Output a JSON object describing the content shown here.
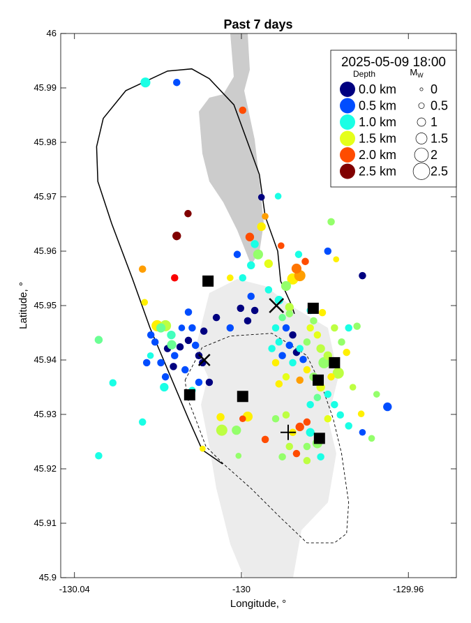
{
  "chart_data": {
    "type": "scatter",
    "title": "Past 7 days",
    "xlabel": "Longitude, °",
    "ylabel": "Latitude, °",
    "xlim": [
      -130.0433,
      -129.9485
    ],
    "ylim": [
      45.9,
      46.0
    ],
    "xticks": [
      -130.04,
      -130,
      -129.96
    ],
    "xtick_labels": [
      "-130.04",
      "-130",
      "-129.96"
    ],
    "yticks": [
      45.9,
      45.91,
      45.92,
      45.93,
      45.94,
      45.95,
      45.96,
      45.97,
      45.98,
      45.99,
      46.0
    ],
    "ytick_labels": [
      "45.9",
      "45.91",
      "45.92",
      "45.93",
      "45.94",
      "45.95",
      "45.96",
      "45.97",
      "45.98",
      "45.99",
      "46"
    ],
    "grid": false,
    "colormap": "jet",
    "legend": {
      "placement": "top-right",
      "timestamp": "2025-05-09 18:00",
      "depth_title": "Depth",
      "mag_title": "M",
      "mag_subscript": "W",
      "depth_entries": [
        {
          "label": "0.0 km",
          "depth": 0.0
        },
        {
          "label": "0.5 km",
          "depth": 0.5
        },
        {
          "label": "1.0 km",
          "depth": 1.0
        },
        {
          "label": "1.5 km",
          "depth": 1.5
        },
        {
          "label": "2.0 km",
          "depth": 2.0
        },
        {
          "label": "2.5 km",
          "depth": 2.5
        }
      ],
      "mag_entries": [
        {
          "label": "0",
          "mag": 0
        },
        {
          "label": "0.5",
          "mag": 0.5
        },
        {
          "label": "1",
          "mag": 1
        },
        {
          "label": "1.5",
          "mag": 1.5
        },
        {
          "label": "2",
          "mag": 2
        },
        {
          "label": "2.5",
          "mag": 2.5
        }
      ]
    },
    "point_fields": [
      "lon",
      "lat",
      "depth_km",
      "mag_w"
    ],
    "points": [
      [
        -130.023,
        45.991,
        1.0,
        1.0
      ],
      [
        -130.0155,
        45.991,
        0.5,
        0.6
      ],
      [
        -129.9997,
        45.9859,
        2.0,
        0.6
      ],
      [
        -130.0128,
        45.9669,
        2.5,
        0.6
      ],
      [
        -130.0155,
        45.9628,
        2.5,
        0.8
      ],
      [
        -130.016,
        45.9551,
        2.2,
        0.6
      ],
      [
        -130.0237,
        45.9567,
        1.8,
        0.6
      ],
      [
        -130.0232,
        45.9506,
        1.6,
        0.5
      ],
      [
        -130.0342,
        45.9437,
        1.2,
        0.7
      ],
      [
        -130.0202,
        45.9463,
        1.6,
        1.2
      ],
      [
        -130.0182,
        45.9463,
        1.4,
        1.2
      ],
      [
        -130.0308,
        45.9358,
        1.0,
        0.6
      ],
      [
        -130.0237,
        45.9286,
        1.0,
        0.6
      ],
      [
        -130.0342,
        45.9224,
        1.0,
        0.6
      ],
      [
        -129.965,
        45.9314,
        0.5,
        0.8
      ],
      [
        -130.0047,
        45.9271,
        1.4,
        1.2
      ],
      [
        -130.0012,
        45.9271,
        1.3,
        0.9
      ],
      [
        -130.005,
        45.9295,
        1.6,
        0.7
      ],
      [
        -129.9985,
        45.9296,
        1.6,
        1.0
      ],
      [
        -129.9997,
        45.9292,
        2.0,
        0.5
      ],
      [
        -129.9943,
        45.9254,
        2.0,
        0.6
      ],
      [
        -130.0007,
        45.9224,
        1.3,
        0.4
      ],
      [
        -130.0093,
        45.9237,
        1.6,
        0.4
      ],
      [
        -129.9952,
        45.9699,
        0.0,
        0.5
      ],
      [
        -129.9912,
        45.9701,
        1.0,
        0.5
      ],
      [
        -129.9952,
        45.9645,
        1.6,
        0.8
      ],
      [
        -129.9943,
        45.9664,
        1.8,
        0.5
      ],
      [
        -129.998,
        45.9626,
        2.0,
        0.8
      ],
      [
        -129.9968,
        45.9613,
        1.0,
        0.7
      ],
      [
        -129.996,
        45.9594,
        1.3,
        1.0
      ],
      [
        -129.9935,
        45.9577,
        1.5,
        0.8
      ],
      [
        -129.9905,
        45.961,
        2.0,
        0.5
      ],
      [
        -129.9977,
        45.9574,
        1.0,
        0.7
      ],
      [
        -129.9997,
        45.9551,
        1.0,
        0.6
      ],
      [
        -130.0027,
        45.9551,
        1.6,
        0.5
      ],
      [
        -129.9863,
        45.9594,
        1.0,
        0.6
      ],
      [
        -129.9877,
        45.9549,
        1.6,
        1.2
      ],
      [
        -129.986,
        45.9555,
        1.8,
        1.2
      ],
      [
        -129.9868,
        45.9568,
        1.9,
        1.0
      ],
      [
        -129.9847,
        45.9581,
        2.0,
        0.6
      ],
      [
        -129.9893,
        45.9536,
        1.3,
        1.0
      ],
      [
        -129.991,
        45.951,
        1.0,
        0.8
      ],
      [
        -129.9885,
        45.9497,
        1.4,
        0.8
      ],
      [
        -129.9785,
        45.9654,
        1.3,
        0.6
      ],
      [
        -129.9793,
        45.96,
        0.5,
        0.6
      ],
      [
        -129.971,
        45.9555,
        0.0,
        0.6
      ],
      [
        -129.9773,
        45.9585,
        1.6,
        0.4
      ],
      [
        -130.001,
        45.9594,
        0.5,
        0.6
      ],
      [
        -129.9977,
        45.9517,
        0.5,
        0.6
      ],
      [
        -129.9935,
        45.9529,
        1.0,
        0.6
      ],
      [
        -129.9968,
        45.9491,
        0.0,
        0.6
      ],
      [
        -130.0002,
        45.9495,
        0.0,
        0.6
      ],
      [
        -129.9985,
        45.9472,
        0.0,
        0.6
      ],
      [
        -130.0027,
        45.9459,
        0.5,
        0.6
      ],
      [
        -130.006,
        45.9478,
        0.0,
        0.6
      ],
      [
        -130.009,
        45.9453,
        0.0,
        0.6
      ],
      [
        -130.0127,
        45.9436,
        0.0,
        0.6
      ],
      [
        -130.011,
        45.9427,
        0.5,
        0.6
      ],
      [
        -130.0147,
        45.9424,
        0.0,
        0.6
      ],
      [
        -130.0102,
        45.9408,
        0.0,
        0.6
      ],
      [
        -130.0135,
        45.9382,
        0.5,
        0.6
      ],
      [
        -130.0093,
        45.9395,
        0.0,
        0.6
      ],
      [
        -130.0077,
        45.9359,
        0.0,
        0.6
      ],
      [
        -130.0102,
        45.9359,
        0.5,
        0.6
      ],
      [
        -130.0118,
        45.9344,
        1.0,
        0.6
      ],
      [
        -130.0163,
        45.9388,
        0.0,
        0.6
      ],
      [
        -130.0177,
        45.9421,
        0.0,
        0.6
      ],
      [
        -130.016,
        45.9408,
        0.5,
        0.6
      ],
      [
        -130.0193,
        45.9395,
        0.5,
        0.6
      ],
      [
        -130.0207,
        45.9433,
        0.5,
        0.6
      ],
      [
        -130.0217,
        45.9446,
        0.5,
        0.6
      ],
      [
        -130.0168,
        45.9446,
        1.1,
        0.8
      ],
      [
        -130.0143,
        45.9459,
        0.5,
        0.5
      ],
      [
        -130.0118,
        45.9459,
        0.5,
        0.6
      ],
      [
        -130.0167,
        45.9428,
        1.2,
        0.9
      ],
      [
        -130.0193,
        45.9459,
        1.2,
        0.9
      ],
      [
        -130.0127,
        45.9488,
        0.5,
        0.6
      ],
      [
        -130.0227,
        45.9395,
        0.5,
        0.6
      ],
      [
        -130.0182,
        45.9369,
        0.5,
        0.6
      ],
      [
        -130.0185,
        45.935,
        1.0,
        0.8
      ],
      [
        -130.0218,
        45.9408,
        1.0,
        0.5
      ],
      [
        -129.9893,
        45.9459,
        0.5,
        0.6
      ],
      [
        -129.9877,
        45.9446,
        0.0,
        0.6
      ],
      [
        -129.9885,
        45.9427,
        0.5,
        0.6
      ],
      [
        -129.9868,
        45.9414,
        0.0,
        0.6
      ],
      [
        -129.986,
        45.9421,
        1.0,
        0.6
      ],
      [
        -129.991,
        45.9433,
        1.0,
        0.6
      ],
      [
        -129.9902,
        45.9408,
        0.5,
        0.6
      ],
      [
        -129.9877,
        45.9395,
        1.0,
        0.6
      ],
      [
        -129.9852,
        45.9401,
        0.5,
        0.6
      ],
      [
        -129.9843,
        45.9433,
        1.3,
        0.6
      ],
      [
        -129.9835,
        45.9459,
        1.5,
        0.6
      ],
      [
        -129.9827,
        45.9472,
        1.3,
        0.6
      ],
      [
        -129.9818,
        45.9446,
        1.5,
        0.6
      ],
      [
        -129.981,
        45.9421,
        1.4,
        0.8
      ],
      [
        -129.9802,
        45.9395,
        1.3,
        1.2
      ],
      [
        -129.9793,
        45.9408,
        1.4,
        0.8
      ],
      [
        -129.9777,
        45.9395,
        1.5,
        1.0
      ],
      [
        -129.9768,
        45.9376,
        1.4,
        1.2
      ],
      [
        -129.9785,
        45.9369,
        1.6,
        0.6
      ],
      [
        -129.9827,
        45.9369,
        1.3,
        0.8
      ],
      [
        -129.9843,
        45.9382,
        1.6,
        0.6
      ],
      [
        -129.986,
        45.9363,
        1.8,
        0.6
      ],
      [
        -129.981,
        45.935,
        1.5,
        0.8
      ],
      [
        -129.9793,
        45.9337,
        1.0,
        0.6
      ],
      [
        -129.9818,
        45.9331,
        1.2,
        0.6
      ],
      [
        -129.9893,
        45.9369,
        1.5,
        0.6
      ],
      [
        -129.991,
        45.9356,
        1.6,
        0.6
      ],
      [
        -129.9918,
        45.9395,
        1.6,
        0.6
      ],
      [
        -129.9927,
        45.9421,
        1.0,
        0.6
      ],
      [
        -129.9918,
        45.9459,
        1.0,
        0.6
      ],
      [
        -129.9902,
        45.9478,
        1.2,
        0.6
      ],
      [
        -129.9885,
        45.9485,
        1.3,
        0.6
      ],
      [
        -129.9835,
        45.9491,
        1.0,
        0.6
      ],
      [
        -129.9806,
        45.9487,
        1.6,
        0.6
      ],
      [
        -129.9777,
        45.9459,
        1.4,
        0.6
      ],
      [
        -129.976,
        45.9433,
        1.3,
        0.6
      ],
      [
        -129.9748,
        45.9414,
        1.6,
        0.6
      ],
      [
        -129.9743,
        45.9459,
        1.0,
        0.6
      ],
      [
        -129.9723,
        45.9462,
        1.3,
        0.6
      ],
      [
        -129.9835,
        45.9318,
        1.0,
        0.6
      ],
      [
        -129.9777,
        45.9318,
        1.0,
        0.6
      ],
      [
        -129.9763,
        45.9299,
        1.0,
        0.6
      ],
      [
        -129.9793,
        45.9292,
        1.5,
        0.6
      ],
      [
        -129.9843,
        45.9286,
        2.0,
        0.6
      ],
      [
        -129.986,
        45.9277,
        2.0,
        0.8
      ],
      [
        -129.9835,
        45.9267,
        1.0,
        0.8
      ],
      [
        -129.9818,
        45.9247,
        1.3,
        1.0
      ],
      [
        -129.9843,
        45.9241,
        1.3,
        0.6
      ],
      [
        -129.9868,
        45.9228,
        2.0,
        0.6
      ],
      [
        -129.9885,
        45.9241,
        1.4,
        0.6
      ],
      [
        -129.9902,
        45.9222,
        1.3,
        0.6
      ],
      [
        -129.9843,
        45.9215,
        1.4,
        0.6
      ],
      [
        -129.981,
        45.9222,
        1.0,
        0.6
      ],
      [
        -129.9743,
        45.9279,
        1.0,
        0.6
      ],
      [
        -129.971,
        45.9267,
        0.5,
        0.5
      ],
      [
        -129.9688,
        45.9256,
        1.3,
        0.5
      ],
      [
        -129.9713,
        45.9301,
        1.6,
        0.5
      ],
      [
        -129.9918,
        45.9292,
        1.3,
        0.6
      ],
      [
        -129.9893,
        45.9299,
        1.4,
        0.6
      ],
      [
        -129.9877,
        45.9267,
        1.6,
        0.6
      ],
      [
        -129.9676,
        45.9337,
        1.3,
        0.5
      ],
      [
        -129.9733,
        45.935,
        1.4,
        0.5
      ]
    ],
    "stations_square": [
      [
        -130.008,
        45.9545
      ],
      [
        -129.9828,
        45.9495
      ],
      [
        -130.0124,
        45.9336
      ],
      [
        -129.9997,
        45.9333
      ],
      [
        -129.9816,
        45.9363
      ],
      [
        -129.9777,
        45.9395
      ],
      [
        -129.9813,
        45.9256
      ]
    ],
    "markers_x": [
      [
        -129.9916,
        45.95,
        "large"
      ],
      [
        -130.0089,
        45.94,
        "small"
      ]
    ],
    "markers_plus": [
      [
        -129.9888,
        45.9267
      ]
    ],
    "outline_solid": [
      [
        -130.0045,
        45.9209
      ],
      [
        -130.0094,
        45.9235
      ],
      [
        -130.0127,
        45.9292
      ],
      [
        -130.0219,
        45.9459
      ],
      [
        -130.0261,
        45.9549
      ],
      [
        -130.0311,
        45.9651
      ],
      [
        -130.0344,
        45.9728
      ],
      [
        -130.0347,
        45.9792
      ],
      [
        -130.0331,
        45.9844
      ],
      [
        -130.0277,
        45.9895
      ],
      [
        -130.0177,
        45.9931
      ],
      [
        -130.0119,
        45.9935
      ],
      [
        -130.0077,
        45.9917
      ],
      [
        -130.0018,
        45.9869
      ],
      [
        -129.9957,
        45.9741
      ],
      [
        -129.9943,
        45.9664
      ],
      [
        -129.9913,
        45.96
      ],
      [
        -129.9906,
        45.9545
      ],
      [
        -129.988,
        45.9501
      ],
      [
        -129.9873,
        45.9485
      ]
    ],
    "outline_dashed": [
      [
        -130.0135,
        45.9363
      ],
      [
        -130.0094,
        45.9423
      ],
      [
        -130.0027,
        45.9444
      ],
      [
        -129.9927,
        45.9449
      ],
      [
        -129.9893,
        45.9433
      ],
      [
        -129.9843,
        45.9408
      ],
      [
        -129.9805,
        45.9347
      ],
      [
        -129.978,
        45.9292
      ],
      [
        -129.976,
        45.9228
      ],
      [
        -129.9743,
        45.9138
      ],
      [
        -129.9748,
        45.9081
      ],
      [
        -129.9777,
        45.9064
      ],
      [
        -129.9843,
        45.9064
      ],
      [
        -129.991,
        45.9113
      ],
      [
        -129.9977,
        45.9164
      ],
      [
        -130.0043,
        45.9209
      ],
      [
        -130.0085,
        45.9241
      ],
      [
        -130.011,
        45.9292
      ],
      [
        -130.013,
        45.9331
      ],
      [
        -130.0135,
        45.9363
      ]
    ],
    "colors": {
      "flow_dark": "#cccccc",
      "flow_light": "#ececec",
      "axis": "#000000"
    }
  }
}
